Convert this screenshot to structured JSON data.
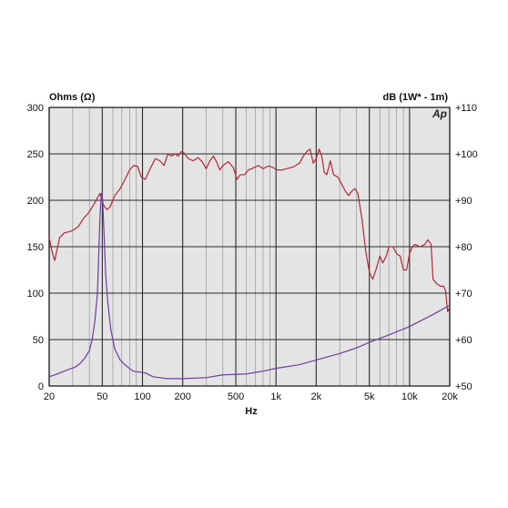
{
  "chart_data": {
    "type": "line",
    "xscale": "log",
    "xlim": [
      20,
      20000
    ],
    "xlabel": "Hz",
    "x_tick_labels": [
      {
        "x": 20,
        "label": "20"
      },
      {
        "x": 50,
        "label": "50"
      },
      {
        "x": 100,
        "label": "100"
      },
      {
        "x": 200,
        "label": "200"
      },
      {
        "x": 500,
        "label": "500"
      },
      {
        "x": 1000,
        "label": "1k"
      },
      {
        "x": 2000,
        "label": "2k"
      },
      {
        "x": 5000,
        "label": "5k"
      },
      {
        "x": 10000,
        "label": "10k"
      },
      {
        "x": 20000,
        "label": "20k"
      }
    ],
    "left_axis": {
      "label": "Ohms (Ω)",
      "ylim": [
        0,
        300
      ],
      "ticks": [
        0,
        50,
        100,
        150,
        200,
        250,
        300
      ],
      "tick_labels": [
        "0",
        "50",
        "100",
        "150",
        "200",
        "250",
        "300"
      ]
    },
    "right_axis": {
      "label": "dB (1W* - 1m)",
      "ylim": [
        50,
        110
      ],
      "ticks": [
        50,
        60,
        70,
        80,
        90,
        100,
        110
      ],
      "tick_labels": [
        "+50",
        "+60",
        "+70",
        "+80",
        "+90",
        "+100",
        "+110"
      ]
    },
    "logo": "Ap",
    "grid": true,
    "series": [
      {
        "axis": "right",
        "color": "#b0283a",
        "points": [
          [
            20,
            82
          ],
          [
            21,
            79
          ],
          [
            22,
            77
          ],
          [
            24,
            82
          ],
          [
            26,
            83
          ],
          [
            28,
            83.2
          ],
          [
            30,
            83.5
          ],
          [
            33,
            84.3
          ],
          [
            36,
            86
          ],
          [
            40,
            87.5
          ],
          [
            44,
            89.5
          ],
          [
            48,
            91.5
          ],
          [
            51,
            89
          ],
          [
            54,
            88
          ],
          [
            57,
            88.5
          ],
          [
            62,
            91
          ],
          [
            68,
            92.5
          ],
          [
            74,
            94.5
          ],
          [
            80,
            96.5
          ],
          [
            86,
            97.5
          ],
          [
            92,
            97.3
          ],
          [
            98,
            95
          ],
          [
            105,
            94.5
          ],
          [
            115,
            97
          ],
          [
            125,
            99
          ],
          [
            135,
            98.5
          ],
          [
            145,
            97.5
          ],
          [
            155,
            100
          ],
          [
            165,
            99.5
          ],
          [
            175,
            100
          ],
          [
            185,
            99.5
          ],
          [
            195,
            100.5
          ],
          [
            205,
            100.2
          ],
          [
            220,
            99
          ],
          [
            240,
            98.5
          ],
          [
            260,
            99.2
          ],
          [
            280,
            98.3
          ],
          [
            300,
            96.8
          ],
          [
            320,
            98.5
          ],
          [
            340,
            99.5
          ],
          [
            360,
            98.2
          ],
          [
            380,
            96.5
          ],
          [
            400,
            97.5
          ],
          [
            440,
            98.3
          ],
          [
            480,
            97
          ],
          [
            510,
            94.5
          ],
          [
            540,
            95.5
          ],
          [
            580,
            95.5
          ],
          [
            620,
            96.5
          ],
          [
            680,
            97
          ],
          [
            740,
            97.5
          ],
          [
            800,
            96.8
          ],
          [
            880,
            97.4
          ],
          [
            960,
            97
          ],
          [
            1000,
            96.6
          ],
          [
            1100,
            96.5
          ],
          [
            1200,
            96.8
          ],
          [
            1350,
            97.2
          ],
          [
            1500,
            98
          ],
          [
            1600,
            99.5
          ],
          [
            1700,
            100.5
          ],
          [
            1800,
            101
          ],
          [
            1900,
            98
          ],
          [
            2000,
            99
          ],
          [
            2100,
            101
          ],
          [
            2200,
            99.5
          ],
          [
            2300,
            96
          ],
          [
            2400,
            95.5
          ],
          [
            2550,
            98.5
          ],
          [
            2700,
            95.5
          ],
          [
            2900,
            95
          ],
          [
            3100,
            93.5
          ],
          [
            3300,
            92
          ],
          [
            3500,
            91
          ],
          [
            3700,
            92
          ],
          [
            3900,
            92.5
          ],
          [
            4100,
            91.5
          ],
          [
            4400,
            86
          ],
          [
            4700,
            79
          ],
          [
            5000,
            74.5
          ],
          [
            5300,
            73
          ],
          [
            5600,
            75
          ],
          [
            6000,
            78
          ],
          [
            6300,
            76.5
          ],
          [
            6700,
            78
          ],
          [
            7000,
            80
          ],
          [
            7500,
            80
          ],
          [
            8000,
            78.5
          ],
          [
            8500,
            78
          ],
          [
            9000,
            75
          ],
          [
            9500,
            75
          ],
          [
            10000,
            78.5
          ],
          [
            10500,
            80
          ],
          [
            11000,
            80.5
          ],
          [
            12000,
            80
          ],
          [
            13000,
            80.5
          ],
          [
            13700,
            81.5
          ],
          [
            14500,
            80.5
          ],
          [
            15000,
            73
          ],
          [
            16000,
            72
          ],
          [
            17000,
            71.5
          ],
          [
            18000,
            71.5
          ],
          [
            18600,
            70.5
          ],
          [
            19300,
            66
          ],
          [
            20000,
            67
          ]
        ]
      },
      {
        "axis": "left",
        "color": "#6a3fa0",
        "points": [
          [
            20,
            10
          ],
          [
            22,
            12
          ],
          [
            25,
            15
          ],
          [
            28,
            18
          ],
          [
            31,
            20
          ],
          [
            34,
            24
          ],
          [
            37,
            30
          ],
          [
            40,
            38
          ],
          [
            42,
            50
          ],
          [
            44,
            70
          ],
          [
            46,
            100
          ],
          [
            47,
            140
          ],
          [
            48,
            180
          ],
          [
            49,
            205
          ],
          [
            49.6,
            208
          ],
          [
            50.3,
            200
          ],
          [
            51.5,
            165
          ],
          [
            53,
            120
          ],
          [
            55,
            90
          ],
          [
            58,
            60
          ],
          [
            62,
            40
          ],
          [
            68,
            28
          ],
          [
            75,
            22
          ],
          [
            85,
            16
          ],
          [
            95,
            15
          ],
          [
            105,
            14
          ],
          [
            120,
            10
          ],
          [
            150,
            8
          ],
          [
            200,
            8
          ],
          [
            300,
            9
          ],
          [
            400,
            12
          ],
          [
            600,
            13
          ],
          [
            800,
            16
          ],
          [
            1000,
            19
          ],
          [
            1500,
            23
          ],
          [
            2000,
            28
          ],
          [
            3000,
            35
          ],
          [
            4000,
            41
          ],
          [
            5000,
            47
          ],
          [
            7000,
            55
          ],
          [
            10000,
            64
          ],
          [
            15000,
            77
          ],
          [
            20000,
            87
          ]
        ]
      }
    ]
  }
}
